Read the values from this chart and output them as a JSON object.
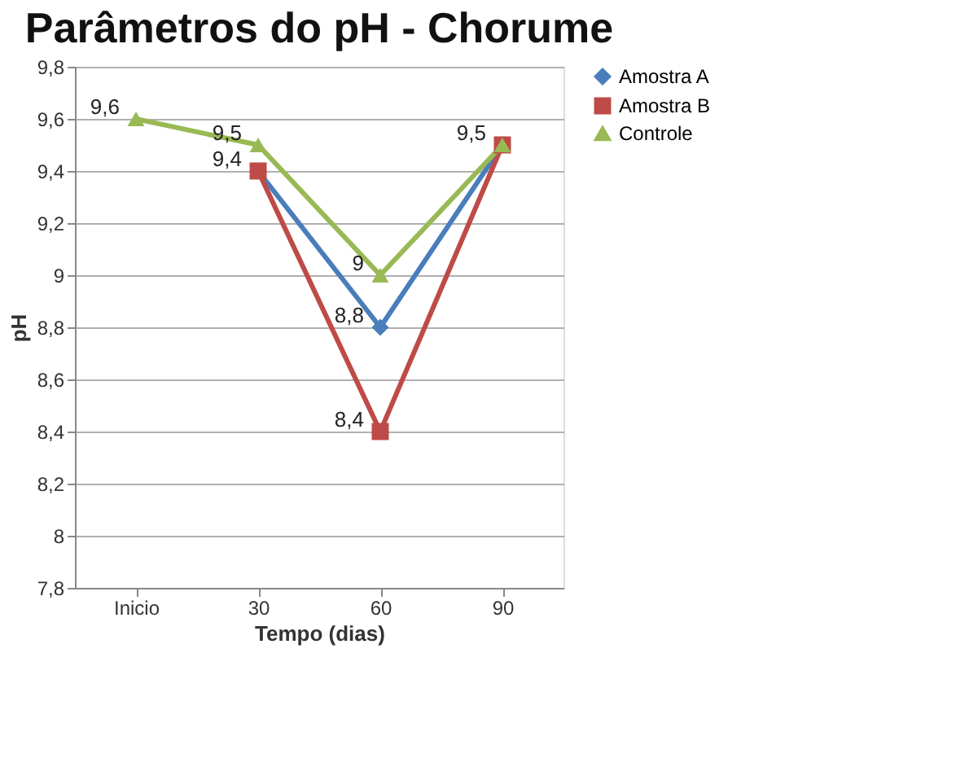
{
  "chart_data": {
    "type": "line",
    "title": "Parâmetros do pH - Chorume",
    "xlabel": "Tempo (dias)",
    "ylabel": "pH",
    "categories": [
      "Inicio",
      "30",
      "60",
      "90"
    ],
    "series": [
      {
        "name": "Amostra A",
        "color": "#4a7ebb",
        "marker": "diamond",
        "values": [
          null,
          9.4,
          8.8,
          9.5
        ],
        "value_labels": [
          null,
          null,
          "8,8",
          null
        ]
      },
      {
        "name": "Amostra B",
        "color": "#be4b48",
        "marker": "square",
        "values": [
          null,
          9.4,
          8.4,
          9.5
        ],
        "value_labels": [
          null,
          "9,4",
          "8,4",
          null
        ]
      },
      {
        "name": "Controle",
        "color": "#98b954",
        "marker": "triangle",
        "values": [
          9.6,
          9.5,
          9.0,
          9.5
        ],
        "value_labels": [
          "9,6",
          "9,5",
          "9",
          "9,5"
        ]
      }
    ],
    "ylim": [
      7.8,
      9.8
    ],
    "yticks": [
      {
        "value": 7.8,
        "label": "7,8"
      },
      8,
      {
        "value": 8.2,
        "label": "8,2"
      },
      {
        "value": 8.4,
        "label": "8,4"
      },
      {
        "value": 8.6,
        "label": "8,6"
      },
      {
        "value": 8.8,
        "label": "8,8"
      },
      9,
      {
        "value": 9.2,
        "label": "9,2"
      },
      {
        "value": 9.4,
        "label": "9,4"
      },
      {
        "value": 9.6,
        "label": "9,6"
      },
      {
        "value": 9.8,
        "label": "9,8"
      }
    ],
    "grid": "y",
    "legend": "right",
    "line_style": "solid"
  }
}
